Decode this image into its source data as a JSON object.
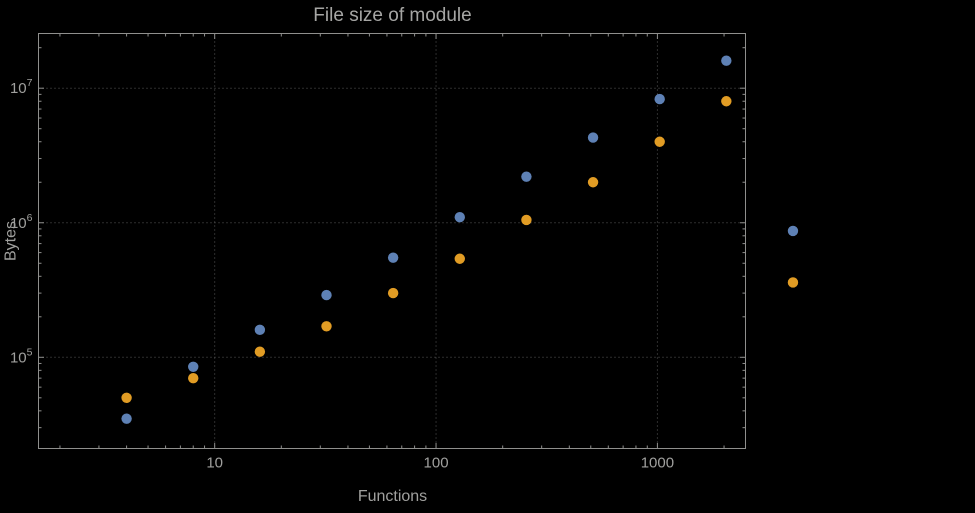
{
  "chart_data": {
    "type": "scatter",
    "title": "File size of module",
    "xlabel": "Functions",
    "ylabel": "Bytes",
    "x_scale": "log",
    "y_scale": "log",
    "x_range": [
      1.6,
      2500
    ],
    "y_range": [
      21000,
      25500000
    ],
    "grid": true,
    "legend": "none",
    "x": [
      4,
      8,
      16,
      32,
      64,
      128,
      256,
      512,
      1024,
      2048,
      4096
    ],
    "series": [
      {
        "name": "blue",
        "color": "#5e81b5",
        "values": [
          35000,
          85000,
          160000,
          290000,
          550000,
          1100000,
          2200000,
          4300000,
          8300000,
          16000000,
          870000
        ]
      },
      {
        "name": "orange",
        "color": "#e19c24",
        "values": [
          50000,
          70000,
          110000,
          170000,
          300000,
          540000,
          1050000,
          2000000,
          4000000,
          8000000,
          360000
        ]
      }
    ],
    "x_ticks": [
      10,
      100,
      1000
    ],
    "x_tick_labels": [
      "10",
      "100",
      "1000"
    ],
    "y_ticks": [
      100000,
      1000000,
      10000000
    ],
    "y_tick_labels": [
      {
        "base": "10",
        "exp": "5"
      },
      {
        "base": "10",
        "exp": "6"
      },
      {
        "base": "10",
        "exp": "7"
      }
    ],
    "x_gridlines": [
      10,
      100,
      1000
    ],
    "y_gridlines": [
      100000,
      1000000,
      10000000
    ],
    "colors": {
      "background": "#000000",
      "frame": "#8f8f8d",
      "grid": "#5a5a5a",
      "text": "#a0a09e",
      "title": "#a6a6a4"
    }
  }
}
